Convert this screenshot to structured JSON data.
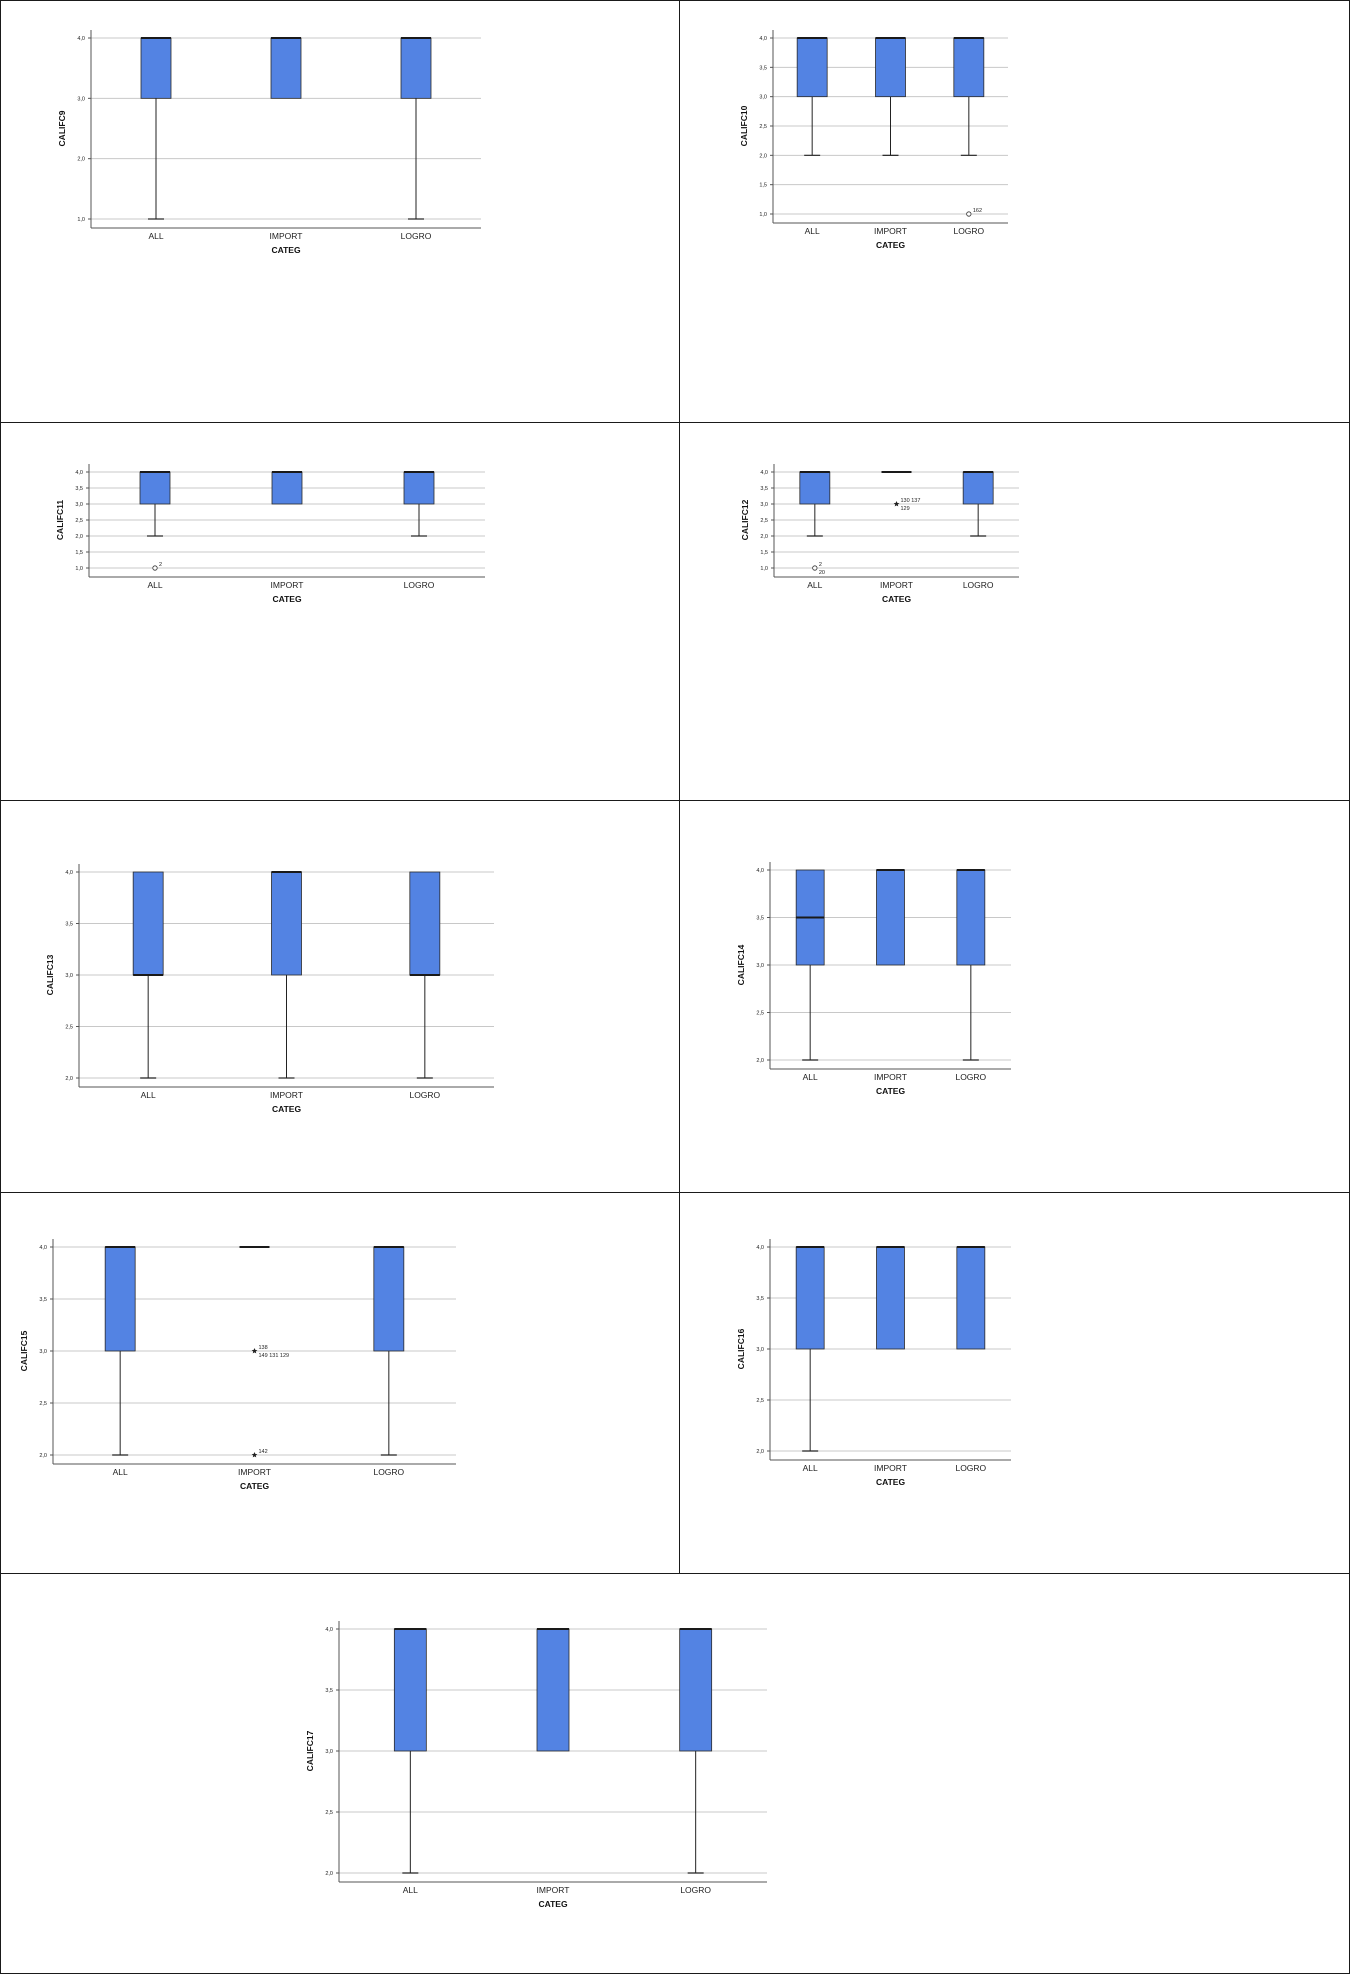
{
  "colors": {
    "box_fill": "#5383e3",
    "box_stroke": "#2b2b2b",
    "grid": "#c8c8c8",
    "axis": "#555555",
    "text": "#222222"
  },
  "chart_data": [
    {
      "type": "boxplot",
      "xlabel": "CATEG",
      "ylabel": "CALIFC9",
      "categories": [
        "ALL",
        "IMPORT",
        "LOGRO"
      ],
      "ylim": [
        1.0,
        4.0
      ],
      "yticks": [
        1.0,
        2.0,
        3.0,
        4.0
      ],
      "ytick_labels": [
        "1,0",
        "2,0",
        "3,0",
        "4,0"
      ],
      "grid": true,
      "boxes": [
        {
          "category": "ALL",
          "min": 1.0,
          "q1": 3.0,
          "median": 4.0,
          "q3": 4.0,
          "max": 4.0
        },
        {
          "category": "IMPORT",
          "min": 3.0,
          "q1": 3.0,
          "median": 4.0,
          "q3": 4.0,
          "max": 4.0
        },
        {
          "category": "LOGRO",
          "min": 1.0,
          "q1": 3.0,
          "median": 4.0,
          "q3": 4.0,
          "max": 4.0
        }
      ],
      "outliers": []
    },
    {
      "type": "boxplot",
      "xlabel": "CATEG",
      "ylabel": "CALIFC10",
      "categories": [
        "ALL",
        "IMPORT",
        "LOGRO"
      ],
      "ylim": [
        1.0,
        4.0
      ],
      "yticks": [
        1.0,
        1.5,
        2.0,
        2.5,
        3.0,
        3.5,
        4.0
      ],
      "ytick_labels": [
        "1,0",
        "1,5",
        "2,0",
        "2,5",
        "3,0",
        "3,5",
        "4,0"
      ],
      "grid": true,
      "boxes": [
        {
          "category": "ALL",
          "min": 2.0,
          "q1": 3.0,
          "median": 4.0,
          "q3": 4.0,
          "max": 4.0
        },
        {
          "category": "IMPORT",
          "min": 2.0,
          "q1": 3.0,
          "median": 4.0,
          "q3": 4.0,
          "max": 4.0
        },
        {
          "category": "LOGRO",
          "min": 2.0,
          "q1": 3.0,
          "median": 4.0,
          "q3": 4.0,
          "max": 4.0
        }
      ],
      "outliers": [
        {
          "category": "LOGRO",
          "value": 1.0,
          "marker": "circle",
          "label": "162"
        }
      ]
    },
    {
      "type": "boxplot",
      "xlabel": "CATEG",
      "ylabel": "CALIFC11",
      "categories": [
        "ALL",
        "IMPORT",
        "LOGRO"
      ],
      "ylim": [
        1.0,
        4.0
      ],
      "yticks": [
        1.0,
        1.5,
        2.0,
        2.5,
        3.0,
        3.5,
        4.0
      ],
      "ytick_labels": [
        "1,0",
        "1,5",
        "2,0",
        "2,5",
        "3,0",
        "3,5",
        "4,0"
      ],
      "grid": true,
      "boxes": [
        {
          "category": "ALL",
          "min": 2.0,
          "q1": 3.0,
          "median": 4.0,
          "q3": 4.0,
          "max": 4.0
        },
        {
          "category": "IMPORT",
          "min": 3.0,
          "q1": 3.0,
          "median": 4.0,
          "q3": 4.0,
          "max": 4.0
        },
        {
          "category": "LOGRO",
          "min": 2.0,
          "q1": 3.0,
          "median": 4.0,
          "q3": 4.0,
          "max": 4.0
        }
      ],
      "outliers": [
        {
          "category": "ALL",
          "value": 1.0,
          "marker": "circle",
          "label": "2"
        }
      ]
    },
    {
      "type": "boxplot",
      "xlabel": "CATEG",
      "ylabel": "CALIFC12",
      "categories": [
        "ALL",
        "IMPORT",
        "LOGRO"
      ],
      "ylim": [
        1.0,
        4.0
      ],
      "yticks": [
        1.0,
        1.5,
        2.0,
        2.5,
        3.0,
        3.5,
        4.0
      ],
      "ytick_labels": [
        "1,0",
        "1,5",
        "2,0",
        "2,5",
        "3,0",
        "3,5",
        "4,0"
      ],
      "grid": true,
      "boxes": [
        {
          "category": "ALL",
          "min": 2.0,
          "q1": 3.0,
          "median": 4.0,
          "q3": 4.0,
          "max": 4.0
        },
        {
          "category": "IMPORT",
          "min": 4.0,
          "q1": 4.0,
          "median": 4.0,
          "q3": 4.0,
          "max": 4.0
        },
        {
          "category": "LOGRO",
          "min": 2.0,
          "q1": 3.0,
          "median": 4.0,
          "q3": 4.0,
          "max": 4.0
        }
      ],
      "outliers": [
        {
          "category": "ALL",
          "value": 1.0,
          "marker": "circle",
          "label": "2\n20"
        },
        {
          "category": "IMPORT",
          "value": 3.0,
          "marker": "star",
          "label": "130 137\n129"
        }
      ]
    },
    {
      "type": "boxplot",
      "xlabel": "CATEG",
      "ylabel": "CALIFC13",
      "categories": [
        "ALL",
        "IMPORT",
        "LOGRO"
      ],
      "ylim": [
        2.0,
        4.0
      ],
      "yticks": [
        2.0,
        2.5,
        3.0,
        3.5,
        4.0
      ],
      "ytick_labels": [
        "2,0",
        "2,5",
        "3,0",
        "3,5",
        "4,0"
      ],
      "grid": true,
      "boxes": [
        {
          "category": "ALL",
          "min": 2.0,
          "q1": 3.0,
          "median": 3.0,
          "q3": 4.0,
          "max": 4.0
        },
        {
          "category": "IMPORT",
          "min": 2.0,
          "q1": 3.0,
          "median": 4.0,
          "q3": 4.0,
          "max": 4.0
        },
        {
          "category": "LOGRO",
          "min": 2.0,
          "q1": 3.0,
          "median": 3.0,
          "q3": 4.0,
          "max": 4.0
        }
      ],
      "outliers": []
    },
    {
      "type": "boxplot",
      "xlabel": "CATEG",
      "ylabel": "CALIFC14",
      "categories": [
        "ALL",
        "IMPORT",
        "LOGRO"
      ],
      "ylim": [
        2.0,
        4.0
      ],
      "yticks": [
        2.0,
        2.5,
        3.0,
        3.5,
        4.0
      ],
      "ytick_labels": [
        "2,0",
        "2,5",
        "3,0",
        "3,5",
        "4,0"
      ],
      "grid": true,
      "boxes": [
        {
          "category": "ALL",
          "min": 2.0,
          "q1": 3.0,
          "median": 3.5,
          "q3": 4.0,
          "max": 4.0
        },
        {
          "category": "IMPORT",
          "min": 3.0,
          "q1": 3.0,
          "median": 4.0,
          "q3": 4.0,
          "max": 4.0
        },
        {
          "category": "LOGRO",
          "min": 2.0,
          "q1": 3.0,
          "median": 4.0,
          "q3": 4.0,
          "max": 4.0
        }
      ],
      "outliers": []
    },
    {
      "type": "boxplot",
      "xlabel": "CATEG",
      "ylabel": "CALIFC15",
      "categories": [
        "ALL",
        "IMPORT",
        "LOGRO"
      ],
      "ylim": [
        2.0,
        4.0
      ],
      "yticks": [
        2.0,
        2.5,
        3.0,
        3.5,
        4.0
      ],
      "ytick_labels": [
        "2,0",
        "2,5",
        "3,0",
        "3,5",
        "4,0"
      ],
      "grid": true,
      "boxes": [
        {
          "category": "ALL",
          "min": 2.0,
          "q1": 3.0,
          "median": 4.0,
          "q3": 4.0,
          "max": 4.0
        },
        {
          "category": "IMPORT",
          "min": 4.0,
          "q1": 4.0,
          "median": 4.0,
          "q3": 4.0,
          "max": 4.0
        },
        {
          "category": "LOGRO",
          "min": 2.0,
          "q1": 3.0,
          "median": 4.0,
          "q3": 4.0,
          "max": 4.0
        }
      ],
      "outliers": [
        {
          "category": "IMPORT",
          "value": 3.0,
          "marker": "star",
          "label": "138\n149 131 129"
        },
        {
          "category": "IMPORT",
          "value": 2.0,
          "marker": "star",
          "label": "142"
        }
      ]
    },
    {
      "type": "boxplot",
      "xlabel": "CATEG",
      "ylabel": "CALIFC16",
      "categories": [
        "ALL",
        "IMPORT",
        "LOGRO"
      ],
      "ylim": [
        2.0,
        4.0
      ],
      "yticks": [
        2.0,
        2.5,
        3.0,
        3.5,
        4.0
      ],
      "ytick_labels": [
        "2,0",
        "2,5",
        "3,0",
        "3,5",
        "4,0"
      ],
      "grid": true,
      "boxes": [
        {
          "category": "ALL",
          "min": 2.0,
          "q1": 3.0,
          "median": 4.0,
          "q3": 4.0,
          "max": 4.0
        },
        {
          "category": "IMPORT",
          "min": 3.0,
          "q1": 3.0,
          "median": 4.0,
          "q3": 4.0,
          "max": 4.0
        },
        {
          "category": "LOGRO",
          "min": 3.0,
          "q1": 3.0,
          "median": 4.0,
          "q3": 4.0,
          "max": 4.0
        }
      ],
      "outliers": []
    },
    {
      "type": "boxplot",
      "xlabel": "CATEG",
      "ylabel": "CALIFC17",
      "categories": [
        "ALL",
        "IMPORT",
        "LOGRO"
      ],
      "ylim": [
        2.0,
        4.0
      ],
      "yticks": [
        2.0,
        2.5,
        3.0,
        3.5,
        4.0
      ],
      "ytick_labels": [
        "2,0",
        "2,5",
        "3,0",
        "3,5",
        "4,0"
      ],
      "grid": true,
      "boxes": [
        {
          "category": "ALL",
          "min": 2.0,
          "q1": 3.0,
          "median": 4.0,
          "q3": 4.0,
          "max": 4.0
        },
        {
          "category": "IMPORT",
          "min": 3.0,
          "q1": 3.0,
          "median": 4.0,
          "q3": 4.0,
          "max": 4.0
        },
        {
          "category": "LOGRO",
          "min": 2.0,
          "q1": 3.0,
          "median": 4.0,
          "q3": 4.0,
          "max": 4.0
        }
      ],
      "outliers": []
    }
  ]
}
